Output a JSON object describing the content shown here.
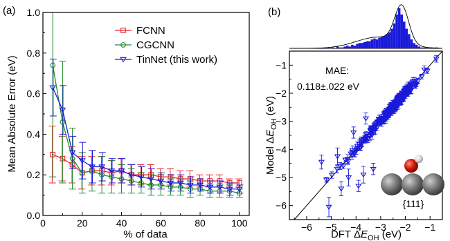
{
  "panel_a": {
    "label": "(a)",
    "chart_data": {
      "type": "line",
      "xlabel": "% of data",
      "ylabel": "Mean Absolute Error (eV)",
      "xlim": [
        0,
        105
      ],
      "ylim": [
        0.0,
        1.0
      ],
      "xticks": [
        "0",
        "20",
        "40",
        "60",
        "80",
        "100"
      ],
      "xtick_values": [
        0,
        20,
        40,
        60,
        80,
        100
      ],
      "yticks": [
        "0.0",
        "0.2",
        "0.4",
        "0.6",
        "0.8",
        "1.0"
      ],
      "ytick_values": [
        0,
        0.2,
        0.4,
        0.6,
        0.8,
        1.0
      ],
      "legend_position": "top-right",
      "x": [
        5,
        10,
        15,
        20,
        25,
        30,
        35,
        40,
        45,
        50,
        55,
        60,
        65,
        70,
        75,
        80,
        85,
        90,
        95,
        100
      ],
      "series": [
        {
          "name": "FCNN",
          "color": "#e8262b",
          "marker": "square",
          "values": [
            0.3,
            0.28,
            0.25,
            0.21,
            0.22,
            0.22,
            0.21,
            0.22,
            0.2,
            0.2,
            0.2,
            0.19,
            0.19,
            0.18,
            0.18,
            0.17,
            0.17,
            0.17,
            0.16,
            0.16
          ],
          "errors": [
            0.14,
            0.11,
            0.09,
            0.08,
            0.07,
            0.07,
            0.06,
            0.06,
            0.05,
            0.05,
            0.05,
            0.04,
            0.04,
            0.04,
            0.04,
            0.03,
            0.03,
            0.03,
            0.02,
            0.02
          ]
        },
        {
          "name": "CGCNN",
          "color": "#1f8a2a",
          "marker": "circle",
          "values": [
            0.74,
            0.46,
            0.28,
            0.21,
            0.22,
            0.2,
            0.19,
            0.18,
            0.17,
            0.16,
            0.15,
            0.15,
            0.14,
            0.14,
            0.13,
            0.13,
            0.12,
            0.12,
            0.12,
            0.11
          ],
          "errors": [
            0.55,
            0.3,
            0.15,
            0.1,
            0.1,
            0.09,
            0.08,
            0.07,
            0.06,
            0.05,
            0.05,
            0.05,
            0.04,
            0.04,
            0.04,
            0.03,
            0.03,
            0.03,
            0.03,
            0.02
          ]
        },
        {
          "name": "TinNet (this work)",
          "color": "#1a1adb",
          "marker": "triangle-down",
          "values": [
            0.63,
            0.52,
            0.31,
            0.27,
            0.24,
            0.24,
            0.22,
            0.22,
            0.2,
            0.19,
            0.18,
            0.17,
            0.16,
            0.16,
            0.15,
            0.15,
            0.14,
            0.14,
            0.13,
            0.13
          ],
          "errors": [
            0.14,
            0.12,
            0.08,
            0.09,
            0.08,
            0.07,
            0.06,
            0.06,
            0.05,
            0.05,
            0.05,
            0.04,
            0.04,
            0.04,
            0.04,
            0.03,
            0.03,
            0.03,
            0.03,
            0.02
          ]
        }
      ]
    }
  },
  "panel_b": {
    "label": "(b)",
    "annotation_title": "MAE:",
    "annotation_value": "0.118±.022 eV",
    "facet_label": "{111}",
    "chart_data": {
      "type": "scatter",
      "xlabel": "DFT ΔE_OH (eV)",
      "ylabel": "Model ΔE_OH (eV)",
      "xlabel_prefix": "DFT ",
      "ylabel_prefix": "Model ",
      "delta": "Δ",
      "E": "E",
      "sub": "OH",
      "unit": " (eV)",
      "xlim": [
        -6.7,
        -0.5
      ],
      "ylim": [
        -6.5,
        -0.5
      ],
      "xticks": [
        "−6",
        "−5",
        "−4",
        "−3",
        "−2",
        "−1"
      ],
      "xtick_values": [
        -6,
        -5,
        -4,
        -3,
        -2,
        -1
      ],
      "yticks": [
        "−6",
        "−5",
        "−4",
        "−3",
        "−2",
        "−1"
      ],
      "ytick_values": [
        -6,
        -5,
        -4,
        -3,
        -2,
        -1
      ],
      "parity_line": true,
      "marker": "triangle-down",
      "color": "#1a1adb",
      "histogram": {
        "bin_start": -5.2,
        "bin_width": 0.1,
        "counts": [
          1,
          0,
          1,
          0,
          2,
          1,
          1,
          2,
          3,
          2,
          4,
          3,
          5,
          6,
          6,
          7,
          8,
          8,
          10,
          11,
          10,
          12,
          13,
          14,
          16,
          18,
          22,
          28,
          38,
          45,
          38,
          30,
          22,
          16,
          10,
          6,
          4,
          2,
          1,
          1,
          1,
          0,
          0,
          0,
          1
        ],
        "fit_curve": true
      },
      "outliers": [
        {
          "x": -5.1,
          "y": -6.05,
          "err": 0.35
        },
        {
          "x": -4.75,
          "y": -4.25,
          "err": 0.3
        },
        {
          "x": -4.6,
          "y": -5.4,
          "err": 0.25
        },
        {
          "x": -3.9,
          "y": -5.3,
          "err": 0.2
        },
        {
          "x": -4.3,
          "y": -5.0,
          "err": 0.3
        },
        {
          "x": -5.4,
          "y": -4.45,
          "err": 0.25
        },
        {
          "x": -3.7,
          "y": -4.9,
          "err": 0.3
        },
        {
          "x": -3.3,
          "y": -4.7,
          "err": 0.2
        },
        {
          "x": -4.1,
          "y": -3.4,
          "err": 0.2
        },
        {
          "x": -3.6,
          "y": -2.9,
          "err": 0.2
        }
      ]
    }
  }
}
